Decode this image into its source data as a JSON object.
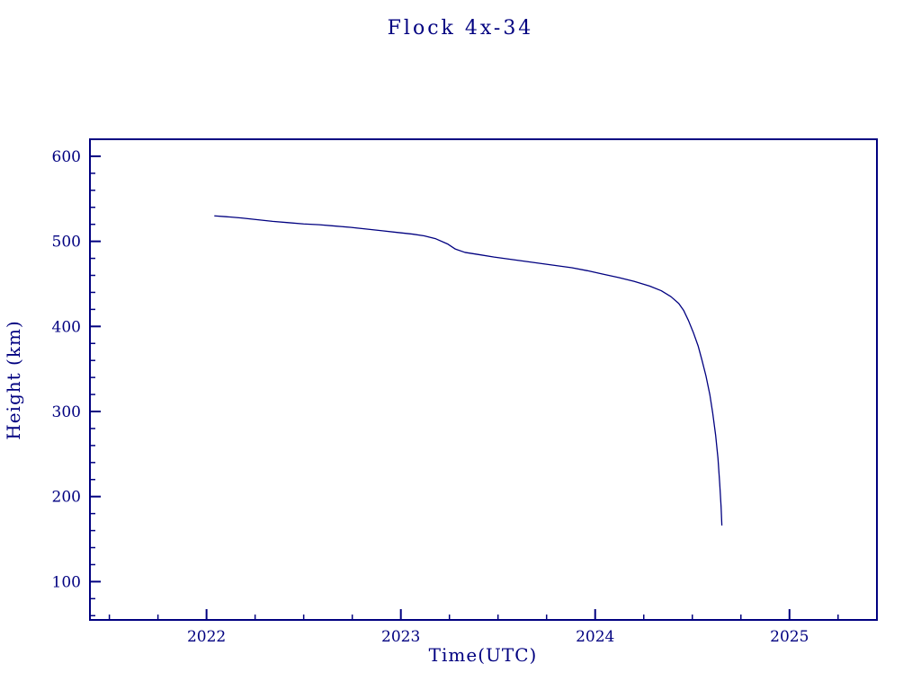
{
  "chart_data": {
    "type": "line",
    "title": "Flock 4x-34",
    "xlabel": "Time(UTC)",
    "ylabel": "Height (km)",
    "xlim": [
      2021.4,
      2025.45
    ],
    "ylim": [
      55,
      620
    ],
    "x_ticks": [
      2022,
      2023,
      2024,
      2025
    ],
    "y_ticks": [
      100,
      200,
      300,
      400,
      500,
      600
    ],
    "x_minor_step": 0.25,
    "y_minor_step": 20,
    "grid": false,
    "legend_position": "none",
    "axis_color": "#000080",
    "line_color": "#000080",
    "series": [
      {
        "name": "height",
        "points": [
          [
            2022.04,
            530
          ],
          [
            2022.1,
            529
          ],
          [
            2022.18,
            527.5
          ],
          [
            2022.26,
            525.5
          ],
          [
            2022.34,
            523.5
          ],
          [
            2022.42,
            522
          ],
          [
            2022.5,
            520.5
          ],
          [
            2022.58,
            519.5
          ],
          [
            2022.66,
            518
          ],
          [
            2022.74,
            516.5
          ],
          [
            2022.82,
            514.5
          ],
          [
            2022.9,
            512.5
          ],
          [
            2022.98,
            510.5
          ],
          [
            2023.06,
            508.5
          ],
          [
            2023.12,
            506.5
          ],
          [
            2023.18,
            503
          ],
          [
            2023.24,
            497
          ],
          [
            2023.28,
            491
          ],
          [
            2023.33,
            487
          ],
          [
            2023.4,
            484.5
          ],
          [
            2023.48,
            481.5
          ],
          [
            2023.56,
            479
          ],
          [
            2023.64,
            476.5
          ],
          [
            2023.72,
            474
          ],
          [
            2023.8,
            471.5
          ],
          [
            2023.88,
            469
          ],
          [
            2023.96,
            465.5
          ],
          [
            2024.04,
            461.5
          ],
          [
            2024.12,
            457.5
          ],
          [
            2024.2,
            453
          ],
          [
            2024.28,
            447.5
          ],
          [
            2024.34,
            442
          ],
          [
            2024.39,
            435
          ],
          [
            2024.43,
            427
          ],
          [
            2024.455,
            419
          ],
          [
            2024.48,
            407
          ],
          [
            2024.505,
            393
          ],
          [
            2024.53,
            377
          ],
          [
            2024.55,
            360
          ],
          [
            2024.57,
            342
          ],
          [
            2024.59,
            320
          ],
          [
            2024.605,
            298
          ],
          [
            2024.62,
            272
          ],
          [
            2024.632,
            245
          ],
          [
            2024.641,
            215
          ],
          [
            2024.648,
            188
          ],
          [
            2024.652,
            166
          ]
        ]
      }
    ]
  }
}
